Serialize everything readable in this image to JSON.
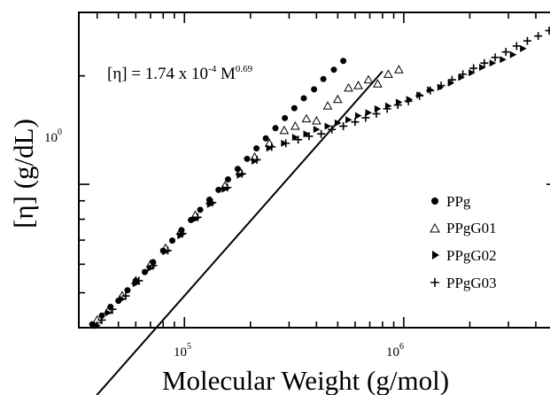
{
  "chart_data": {
    "type": "scatter",
    "title": "",
    "xlabel": "Molecular Weight (g/mol)",
    "ylabel": "[η] (g/dL)",
    "xscale": "log",
    "yscale": "log",
    "xlim": [
      33000,
      5000000
    ],
    "ylim": [
      0.4,
      3.0
    ],
    "grid": false,
    "legend_position": "lower-right",
    "x_tick_labels": [
      {
        "value": 100000,
        "base": "10",
        "exp": "5"
      },
      {
        "value": 1000000,
        "base": "10",
        "exp": "6"
      }
    ],
    "y_tick_labels": [
      {
        "value": 1,
        "base": "10",
        "exp": "0"
      }
    ],
    "annotation": {
      "prefix": "[η] = 1.74 x 10",
      "exp1": "-4",
      "mid": " M",
      "exp2": "0.69"
    },
    "fit_line": {
      "coefficient": 0.000174,
      "exponent": 0.69,
      "x_range": [
        38000,
        800000
      ]
    },
    "series": [
      {
        "name": "PPg",
        "marker": "filled-circle",
        "x": [
          38000,
          42000,
          46000,
          50000,
          55000,
          60000,
          66000,
          72000,
          80000,
          88000,
          97000,
          107000,
          118000,
          130000,
          143000,
          158000,
          175000,
          193000,
          213000,
          235000,
          260000,
          287000,
          317000,
          350000,
          390000,
          430000,
          480000,
          530000
        ],
        "y": [
          0.409,
          0.432,
          0.457,
          0.475,
          0.508,
          0.54,
          0.571,
          0.608,
          0.654,
          0.698,
          0.746,
          0.796,
          0.85,
          0.906,
          0.965,
          1.032,
          1.103,
          1.177,
          1.258,
          1.341,
          1.432,
          1.527,
          1.627,
          1.733,
          1.835,
          1.96,
          2.08,
          2.2
        ]
      },
      {
        "name": "PPgG01",
        "marker": "open-triangle",
        "x": [
          40000,
          45000,
          52000,
          60000,
          70000,
          82000,
          96000,
          112000,
          131000,
          153000,
          179000,
          209000,
          244000,
          285000,
          320000,
          360000,
          400000,
          450000,
          500000,
          560000,
          620000,
          690000,
          760000,
          850000,
          950000
        ],
        "y": [
          0.42,
          0.447,
          0.491,
          0.54,
          0.6,
          0.665,
          0.74,
          0.82,
          0.9,
          0.99,
          1.085,
          1.19,
          1.3,
          1.41,
          1.45,
          1.52,
          1.5,
          1.65,
          1.72,
          1.85,
          1.88,
          1.95,
          1.9,
          2.02,
          2.08
        ]
      },
      {
        "name": "PPgG02",
        "marker": "filled-right-triangle",
        "x": [
          40000,
          45000,
          52000,
          60000,
          70000,
          82000,
          96000,
          112000,
          131000,
          153000,
          179000,
          209000,
          244000,
          285000,
          320000,
          360000,
          400000,
          450000,
          500000,
          560000,
          620000,
          690000,
          760000,
          850000,
          950000,
          1060000,
          1180000,
          1320000,
          1470000,
          1640000,
          1830000,
          2040000,
          2280000,
          2540000,
          2830000,
          3150000,
          3500000
        ],
        "y": [
          0.405,
          0.44,
          0.48,
          0.53,
          0.585,
          0.65,
          0.72,
          0.8,
          0.88,
          0.97,
          1.06,
          1.16,
          1.26,
          1.3,
          1.35,
          1.38,
          1.42,
          1.45,
          1.48,
          1.51,
          1.55,
          1.58,
          1.62,
          1.65,
          1.69,
          1.72,
          1.77,
          1.83,
          1.86,
          1.91,
          1.98,
          2.04,
          2.11,
          2.17,
          2.22,
          2.29,
          2.38
        ]
      },
      {
        "name": "PPgG03",
        "marker": "plus",
        "x": [
          42000,
          47000,
          54000,
          62000,
          72000,
          84000,
          98000,
          115000,
          134000,
          157000,
          183000,
          214000,
          250000,
          290000,
          330000,
          370000,
          420000,
          470000,
          530000,
          600000,
          670000,
          750000,
          840000,
          940000,
          1050000,
          1180000,
          1320000,
          1480000,
          1660000,
          1860000,
          2080000,
          2330000,
          2610000,
          2920000,
          3270000,
          3660000,
          4100000,
          4600000
        ],
        "y": [
          0.42,
          0.45,
          0.49,
          0.54,
          0.595,
          0.655,
          0.73,
          0.81,
          0.89,
          0.98,
          1.07,
          1.17,
          1.27,
          1.3,
          1.33,
          1.36,
          1.38,
          1.42,
          1.45,
          1.49,
          1.53,
          1.57,
          1.62,
          1.66,
          1.7,
          1.76,
          1.82,
          1.88,
          1.95,
          2.02,
          2.1,
          2.17,
          2.25,
          2.33,
          2.42,
          2.5,
          2.58,
          2.67
        ]
      }
    ]
  }
}
